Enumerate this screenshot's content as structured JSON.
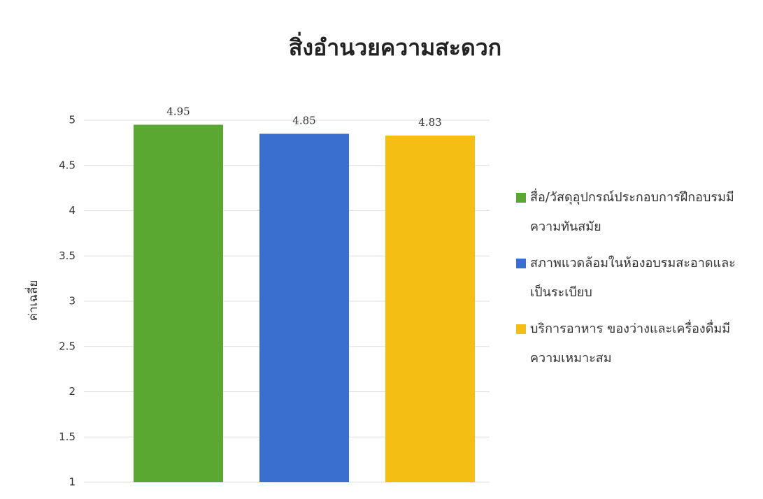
{
  "chart_data": {
    "type": "bar",
    "title": "สิ่งอำนวยความสะดวก",
    "y_label": "ค่าเฉลี่ย",
    "series": [
      {
        "name": "สื่อ/วัสดุอุปกรณ์ประกอบการฝึกอบรมมีความทันสมัย",
        "color": "#5aa832",
        "values": [
          4.95
        ]
      },
      {
        "name": "สภาพแวดล้อมในห้องอบรมสะอาดและเป็นระเบียบ",
        "color": "#3a6fd0",
        "values": [
          4.85
        ]
      },
      {
        "name": "บริการอาหาร ของว่างและเครื่องดื่มมีความเหมาะสม",
        "color": "#f5be14",
        "values": [
          4.83
        ]
      }
    ],
    "ylim": [
      1,
      5
    ],
    "yticks": [
      1,
      1.5,
      2,
      2.5,
      3,
      3.5,
      4,
      4.5,
      5
    ],
    "grid": true,
    "legend": "right"
  }
}
